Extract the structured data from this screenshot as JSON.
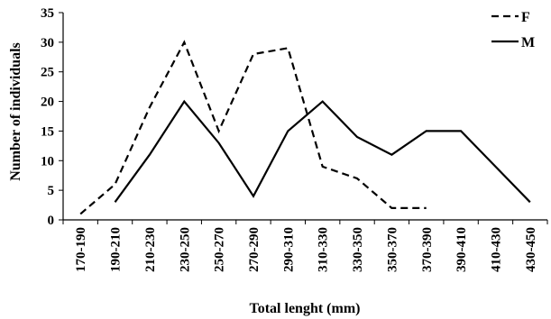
{
  "chart_data": {
    "type": "line",
    "xlabel": "Total lenght (mm)",
    "ylabel": "Number of individuals",
    "ylim": [
      0,
      35
    ],
    "yticks": [
      0,
      5,
      10,
      15,
      20,
      25,
      30,
      35
    ],
    "grid": false,
    "legend_position": "top-right",
    "categories": [
      "170-190",
      "190-210",
      "210-230",
      "230-250",
      "250-270",
      "270-290",
      "290-310",
      "310-330",
      "330-350",
      "350-370",
      "370-390",
      "390-410",
      "410-430",
      "430-450"
    ],
    "series": [
      {
        "name": "F",
        "style": "dashed",
        "color": "#000000",
        "values": [
          1,
          6,
          19,
          30,
          15,
          28,
          29,
          9,
          7,
          2,
          2,
          null,
          null,
          null
        ]
      },
      {
        "name": "M",
        "style": "solid",
        "color": "#000000",
        "values": [
          null,
          3,
          11,
          20,
          13,
          4,
          15,
          20,
          14,
          11,
          15,
          15,
          9,
          3
        ]
      }
    ]
  }
}
